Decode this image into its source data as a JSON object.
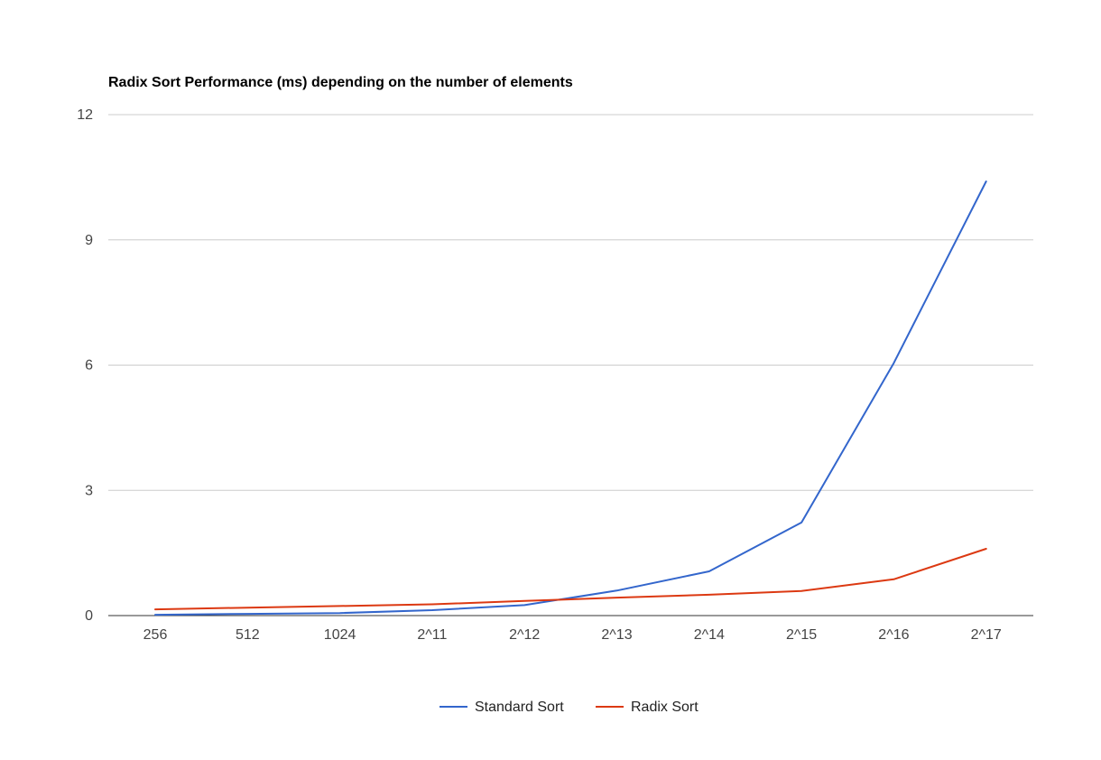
{
  "chart_data": {
    "type": "line",
    "title": "Radix Sort Performance (ms) depending on the number of elements",
    "xlabel": "",
    "ylabel": "",
    "categories": [
      "256",
      "512",
      "1024",
      "2^11",
      "2^12",
      "2^13",
      "2^14",
      "2^15",
      "2^16",
      "2^17"
    ],
    "ylim": [
      0,
      12
    ],
    "yticks": [
      "0",
      "3",
      "6",
      "9",
      "12"
    ],
    "grid": true,
    "legend_position": "bottom",
    "series": [
      {
        "name": "Standard Sort",
        "color": "#3366cc",
        "values": [
          0.02,
          0.04,
          0.06,
          0.13,
          0.25,
          0.6,
          1.06,
          2.23,
          6.05,
          10.4
        ]
      },
      {
        "name": "Radix Sort",
        "color": "#dc3912",
        "values": [
          0.15,
          0.19,
          0.23,
          0.27,
          0.35,
          0.43,
          0.5,
          0.59,
          0.87,
          1.6
        ]
      }
    ]
  }
}
